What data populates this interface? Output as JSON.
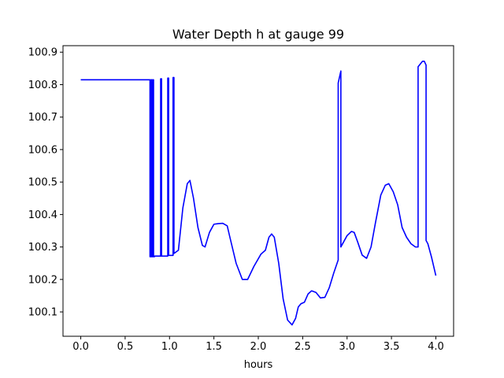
{
  "chart_data": {
    "type": "line",
    "title": "Water Depth h at gauge 99",
    "xlabel": "hours",
    "ylabel": "",
    "xlim": [
      -0.2,
      4.2
    ],
    "ylim": [
      100.025,
      100.92
    ],
    "xticks": [
      0.0,
      0.5,
      1.0,
      1.5,
      2.0,
      2.5,
      3.0,
      3.5,
      4.0
    ],
    "xtick_labels": [
      "0.0",
      "0.5",
      "1.0",
      "1.5",
      "2.0",
      "2.5",
      "3.0",
      "3.5",
      "4.0"
    ],
    "yticks": [
      100.1,
      100.2,
      100.3,
      100.4,
      100.5,
      100.6,
      100.7,
      100.8,
      100.9
    ],
    "ytick_labels": [
      "100.1",
      "100.2",
      "100.3",
      "100.4",
      "100.5",
      "100.6",
      "100.7",
      "100.8",
      "100.9"
    ],
    "grid": false,
    "color": "#0000ff",
    "series": [
      {
        "x": [
          0.0,
          0.78,
          0.78,
          0.79,
          0.79,
          0.8,
          0.8,
          0.81,
          0.81,
          0.82,
          0.82,
          0.83,
          0.83,
          0.9,
          0.9,
          0.91,
          0.91,
          0.98,
          0.98,
          0.99,
          0.99,
          1.04,
          1.04,
          1.05,
          1.05,
          1.1,
          1.15,
          1.2,
          1.23,
          1.27,
          1.32,
          1.37,
          1.4,
          1.45,
          1.5,
          1.55,
          1.6,
          1.65,
          1.68,
          1.75,
          1.82,
          1.88,
          1.95,
          2.03,
          2.08,
          2.12,
          2.15,
          2.18,
          2.23,
          2.28,
          2.33,
          2.38,
          2.42,
          2.45,
          2.48,
          2.52,
          2.56,
          2.6,
          2.65,
          2.7,
          2.75,
          2.8,
          2.85,
          2.9,
          2.9,
          2.93,
          2.93,
          2.94,
          3.0,
          3.05,
          3.08,
          3.12,
          3.17,
          3.22,
          3.27,
          3.32,
          3.38,
          3.43,
          3.47,
          3.52,
          3.57,
          3.62,
          3.67,
          3.72,
          3.77,
          3.8,
          3.8,
          3.85,
          3.87,
          3.89,
          3.89,
          3.91,
          3.95,
          4.0
        ],
        "y": [
          100.815,
          100.815,
          100.27,
          100.27,
          100.815,
          100.815,
          100.27,
          100.27,
          100.815,
          100.815,
          100.27,
          100.27,
          100.272,
          100.272,
          100.818,
          100.818,
          100.272,
          100.272,
          100.82,
          100.82,
          100.274,
          100.274,
          100.822,
          100.822,
          100.28,
          100.29,
          100.42,
          100.495,
          100.505,
          100.45,
          100.36,
          100.305,
          100.3,
          100.345,
          100.37,
          100.372,
          100.373,
          100.365,
          100.33,
          100.25,
          100.2,
          100.2,
          100.24,
          100.278,
          100.29,
          100.33,
          100.34,
          100.33,
          100.25,
          100.14,
          100.075,
          100.06,
          100.08,
          100.115,
          100.125,
          100.13,
          100.155,
          100.165,
          100.16,
          100.143,
          100.145,
          100.175,
          100.22,
          100.26,
          100.805,
          100.842,
          100.3,
          100.305,
          100.335,
          100.348,
          100.345,
          100.315,
          100.275,
          100.265,
          100.3,
          100.375,
          100.46,
          100.49,
          100.495,
          100.47,
          100.43,
          100.36,
          100.33,
          100.31,
          100.3,
          100.3,
          100.855,
          100.872,
          100.872,
          100.86,
          100.32,
          100.31,
          100.27,
          100.212
        ]
      }
    ]
  }
}
